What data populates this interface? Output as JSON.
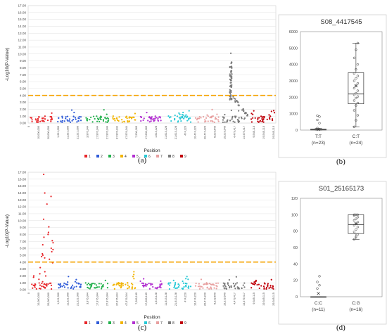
{
  "panel_labels": {
    "a": "(a)",
    "b": "(b)",
    "c": "(c)",
    "d": "(d)"
  },
  "colors": {
    "chr1": "#e8262a",
    "chr2": "#2f5bd8",
    "chr3": "#23b14d",
    "chr4": "#f2b400",
    "chr5": "#b22fd1",
    "chr6": "#27c9d6",
    "chr7": "#e8a0a0",
    "chr8": "#7a7a7a",
    "chr9": "#c0000a",
    "threshold": "#f5a300",
    "box_point": "#333333"
  },
  "chart_data": [
    {
      "id": "manhattan_a",
      "type": "scatter",
      "xlabel": "Position",
      "ylabel": "-Log10(P-Value)",
      "ylim": [
        0,
        17
      ],
      "yticks": [
        "0.00",
        "1.00",
        "2.00",
        "3.00",
        "4.00",
        "5.00",
        "6.00",
        "7.00",
        "8.00",
        "9.00",
        "10.00",
        "11.00",
        "12.00",
        "13.00",
        "14.00",
        "15.00",
        "16.00",
        "17.00"
      ],
      "xticks": [
        "0",
        "10,000,000",
        "20,000,000",
        "1,221,000",
        "11,221,000",
        "21,221,000",
        "3,976,344",
        "17,976,344",
        "27,976,344",
        "37,976,344",
        "47,976,344",
        "7,206,169",
        "17,206,169",
        "1,613,128",
        "11,613,128",
        "21,613,128",
        "474,220",
        "10,474,220",
        "20,474,220",
        "5,219,540",
        "15,219,540",
        "4,479,417",
        "14,479,417",
        "9,545,115",
        "19,545,115",
        "29,545,115"
      ],
      "threshold": 4.0,
      "grid": true,
      "legend_position": "bottom",
      "legend": [
        "1",
        "2",
        "3",
        "4",
        "5",
        "6",
        "7",
        "8",
        "9"
      ],
      "peak": {
        "chromosome": 8,
        "max_y": 10.1
      }
    },
    {
      "id": "boxplot_b",
      "type": "box",
      "title": "S08_4417545",
      "ylim": [
        0,
        6000
      ],
      "yticks": [
        "0",
        "1000",
        "2000",
        "3000",
        "4000",
        "5000",
        "6000"
      ],
      "categories": [
        "T:T",
        "C:T"
      ],
      "counts": [
        "(n=23)",
        "(n=24)"
      ],
      "boxes": [
        {
          "q1": 5,
          "median": 20,
          "q3": 60,
          "whisker_low": 0,
          "whisker_high": 100,
          "mean": 40,
          "outliers": [
            120,
            420,
            620,
            820,
            880
          ]
        },
        {
          "q1": 1600,
          "median": 2200,
          "q3": 3500,
          "whisker_low": 200,
          "whisker_high": 5300,
          "mean": 2700,
          "points": [
            200,
            600,
            900,
            1200,
            1500,
            1650,
            1800,
            1950,
            2050,
            2150,
            2250,
            2400,
            2550,
            2700,
            2850,
            3000,
            3150,
            3300,
            3450,
            3700,
            4000,
            4400,
            4900,
            5300
          ]
        }
      ]
    },
    {
      "id": "manhattan_c",
      "type": "scatter",
      "xlabel": "Position",
      "ylabel": "-Log10(P-Value)",
      "ylim": [
        0,
        17
      ],
      "yticks": [
        "0.00",
        "1.00",
        "2.00",
        "3.00",
        "4.00",
        "5.00",
        "6.00",
        "7.00",
        "8.00",
        "9.00",
        "10.00",
        "11.00",
        "12.00",
        "13.00",
        "14.00",
        "15.00",
        "16.00",
        "17.00"
      ],
      "xticks": [
        "0",
        "10,000,000",
        "20,000,000",
        "1,221,000",
        "11,221,000",
        "21,221,000",
        "3,976,344",
        "17,976,344",
        "27,976,344",
        "37,976,344",
        "47,976,344",
        "7,206,169",
        "17,206,169",
        "1,613,128",
        "11,613,128",
        "21,613,128",
        "474,220",
        "10,474,220",
        "20,474,220",
        "5,219,540",
        "15,219,540",
        "4,479,417",
        "14,479,417",
        "9,545,115",
        "19,545,115",
        "29,545,115"
      ],
      "threshold": 4.0,
      "grid": true,
      "legend_position": "bottom",
      "legend": [
        "1",
        "2",
        "3",
        "4",
        "5",
        "6",
        "7",
        "8",
        "9"
      ],
      "peak": {
        "chromosome": 1,
        "max_y": 16.7
      }
    },
    {
      "id": "boxplot_d",
      "type": "box",
      "title": "S01_25165173",
      "ylim": [
        0,
        120
      ],
      "yticks": [
        "0",
        "20",
        "40",
        "60",
        "80",
        "100",
        "120"
      ],
      "categories": [
        "C:C",
        "C:G"
      ],
      "counts": [
        "(n=11)",
        "(n=16)"
      ],
      "boxes": [
        {
          "q1": 0,
          "median": 0,
          "q3": 0,
          "whisker_low": 0,
          "whisker_high": 0,
          "mean": 4,
          "outliers": [
            10,
            14,
            18,
            25
          ]
        },
        {
          "q1": 77,
          "median": 88,
          "q3": 100,
          "whisker_low": 70,
          "whisker_high": 100,
          "mean": 89,
          "points": [
            70,
            73,
            76,
            79,
            82,
            85,
            87,
            89,
            91,
            93,
            95,
            97,
            99,
            100,
            100,
            100
          ]
        }
      ]
    }
  ]
}
